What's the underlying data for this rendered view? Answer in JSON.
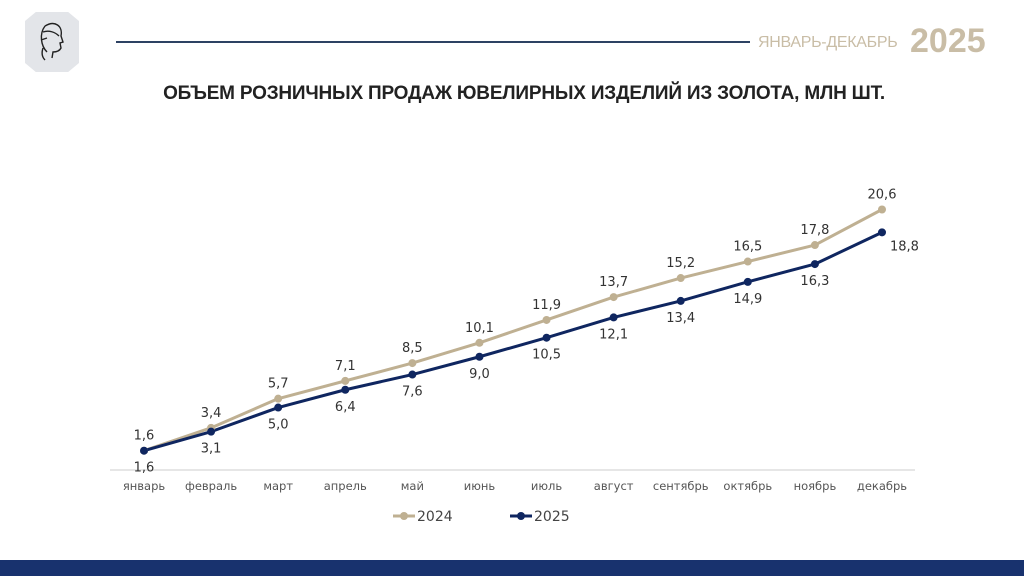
{
  "header": {
    "period": "ЯНВАРЬ-ДЕКАБРЬ",
    "year": "2025",
    "logo": "profile-head-logo"
  },
  "chart_data": {
    "type": "line",
    "title": "ОБЪЕМ РОЗНИЧНЫХ ПРОДАЖ ЮВЕЛИРНЫХ ИЗДЕЛИЙ ИЗ ЗОЛОТА, МЛН ШТ.",
    "categories": [
      "январь",
      "февраль",
      "март",
      "апрель",
      "май",
      "июнь",
      "июль",
      "август",
      "сентябрь",
      "октябрь",
      "ноябрь",
      "декабрь"
    ],
    "series": [
      {
        "name": "2024",
        "color": "#bfb092",
        "values": [
          1.6,
          3.4,
          5.7,
          7.1,
          8.5,
          10.1,
          11.9,
          13.7,
          15.2,
          16.5,
          17.8,
          20.6
        ],
        "labels": [
          "1,6",
          "3,4",
          "5,7",
          "7,1",
          "8,5",
          "10,1",
          "11,9",
          "13,7",
          "15,2",
          "16,5",
          "17,8",
          "20,6"
        ]
      },
      {
        "name": "2025",
        "color": "#0f2660",
        "values": [
          1.6,
          3.1,
          5.0,
          6.4,
          7.6,
          9.0,
          10.5,
          12.1,
          13.4,
          14.9,
          16.3,
          18.8
        ],
        "labels": [
          "1,6",
          "3,1",
          "5,0",
          "6,4",
          "7,6",
          "9,0",
          "10,5",
          "12,1",
          "13,4",
          "14,9",
          "16,3",
          "18,8"
        ]
      }
    ],
    "xlabel": "",
    "ylabel": "",
    "ylim": [
      0,
      24.5
    ],
    "grid": false,
    "legend": "bottom"
  }
}
